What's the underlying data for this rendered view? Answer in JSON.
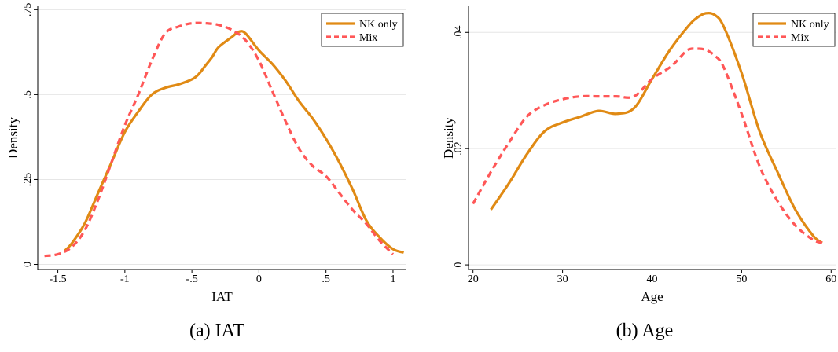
{
  "colors": {
    "nk_only": "#e08a14",
    "mix": "#ff5757",
    "grid": "#e6e6e6"
  },
  "chart_data": [
    {
      "type": "line",
      "caption": "(a) IAT",
      "xlabel": "IAT",
      "ylabel": "Density",
      "xlim": [
        -1.65,
        1.1
      ],
      "ylim": [
        -0.015,
        0.76
      ],
      "xticks": [
        -1.5,
        -1,
        -0.5,
        0,
        0.5,
        1
      ],
      "xtick_labels": [
        "-1.5",
        "-1",
        "-.5",
        "0",
        ".5",
        "1"
      ],
      "yticks": [
        0,
        0.25,
        0.5,
        0.75
      ],
      "ytick_labels": [
        "0",
        ".25",
        ".5",
        ".75"
      ],
      "grid": true,
      "legend": "top-right",
      "series": [
        {
          "name": "NK only",
          "style": "solid",
          "x": [
            -1.45,
            -1.4,
            -1.3,
            -1.2,
            -1.1,
            -1.0,
            -0.9,
            -0.8,
            -0.7,
            -0.6,
            -0.5,
            -0.45,
            -0.4,
            -0.35,
            -0.3,
            -0.2,
            -0.15,
            -0.1,
            0.0,
            0.1,
            0.2,
            0.3,
            0.4,
            0.5,
            0.6,
            0.7,
            0.8,
            0.9,
            1.0,
            1.08
          ],
          "y": [
            0.04,
            0.06,
            0.12,
            0.21,
            0.3,
            0.39,
            0.45,
            0.5,
            0.52,
            0.53,
            0.545,
            0.56,
            0.585,
            0.61,
            0.64,
            0.67,
            0.685,
            0.68,
            0.63,
            0.59,
            0.54,
            0.48,
            0.43,
            0.37,
            0.3,
            0.22,
            0.13,
            0.08,
            0.045,
            0.035
          ]
        },
        {
          "name": "Mix",
          "style": "dashed",
          "x": [
            -1.6,
            -1.5,
            -1.4,
            -1.3,
            -1.2,
            -1.1,
            -1.0,
            -0.9,
            -0.8,
            -0.7,
            -0.6,
            -0.5,
            -0.4,
            -0.3,
            -0.2,
            -0.1,
            0.0,
            0.1,
            0.2,
            0.3,
            0.4,
            0.5,
            0.6,
            0.7,
            0.8,
            0.9,
            1.0
          ],
          "y": [
            0.025,
            0.03,
            0.05,
            0.1,
            0.19,
            0.3,
            0.41,
            0.5,
            0.6,
            0.68,
            0.7,
            0.71,
            0.71,
            0.705,
            0.69,
            0.66,
            0.6,
            0.51,
            0.42,
            0.34,
            0.29,
            0.26,
            0.21,
            0.16,
            0.12,
            0.07,
            0.03
          ]
        }
      ]
    },
    {
      "type": "line",
      "caption": "(b) Age",
      "xlabel": "Age",
      "ylabel": "Density",
      "xlim": [
        19.5,
        60.5
      ],
      "ylim": [
        -0.0008,
        0.0445
      ],
      "xticks": [
        20,
        30,
        40,
        50,
        60
      ],
      "xtick_labels": [
        "20",
        "30",
        "40",
        "50",
        "60"
      ],
      "yticks": [
        0,
        0.02,
        0.04
      ],
      "ytick_labels": [
        "0",
        ".02",
        ".04"
      ],
      "grid": true,
      "legend": "top-right",
      "series": [
        {
          "name": "NK only",
          "style": "solid",
          "x": [
            22,
            24,
            26,
            28,
            30,
            32,
            34,
            36,
            38,
            40,
            42,
            44,
            45,
            46,
            47,
            48,
            50,
            52,
            54,
            56,
            58,
            59
          ],
          "y": [
            0.0095,
            0.014,
            0.019,
            0.023,
            0.0245,
            0.0255,
            0.0265,
            0.026,
            0.027,
            0.032,
            0.037,
            0.041,
            0.0425,
            0.0433,
            0.043,
            0.041,
            0.033,
            0.023,
            0.016,
            0.0095,
            0.005,
            0.0038
          ]
        },
        {
          "name": "Mix",
          "style": "dashed",
          "x": [
            20,
            22,
            24,
            26,
            28,
            30,
            32,
            34,
            36,
            38,
            40,
            42,
            43,
            44,
            45,
            46,
            47,
            48,
            50,
            52,
            54,
            56,
            58,
            59
          ],
          "y": [
            0.0105,
            0.016,
            0.021,
            0.0255,
            0.0275,
            0.0285,
            0.029,
            0.029,
            0.029,
            0.029,
            0.032,
            0.034,
            0.0355,
            0.037,
            0.0372,
            0.037,
            0.036,
            0.034,
            0.026,
            0.017,
            0.011,
            0.0068,
            0.0043,
            0.0038
          ]
        }
      ]
    }
  ]
}
